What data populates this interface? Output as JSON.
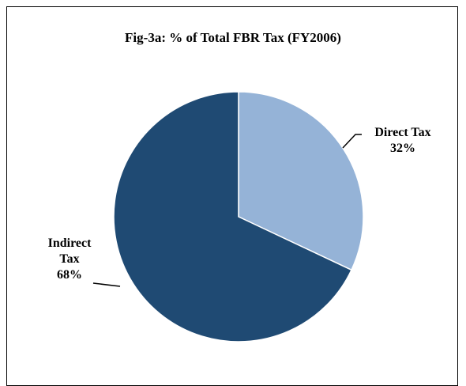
{
  "chart_data": {
    "type": "pie",
    "title": "Fig-3a: % of Total FBR Tax (FY2006)",
    "categories": [
      "Direct Tax",
      "Indirect Tax"
    ],
    "values": [
      32,
      68
    ],
    "value_labels": [
      "32%",
      "68%"
    ],
    "colors": [
      "#95b3d7",
      "#1f4a73"
    ]
  }
}
